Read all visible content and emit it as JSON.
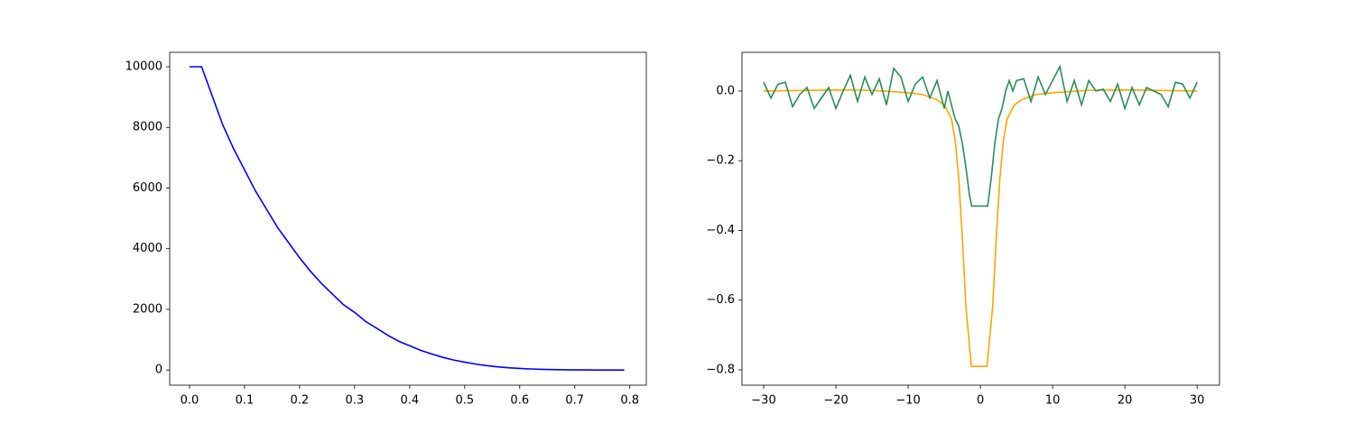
{
  "chart_data": [
    {
      "type": "line",
      "xlim": [
        -0.036,
        0.83
      ],
      "ylim": [
        -500,
        10476
      ],
      "xticks": [
        {
          "value": 0,
          "label": "0.0"
        },
        0.1,
        0.2,
        0.3,
        0.4,
        0.5,
        0.6,
        0.7,
        0.8
      ],
      "yticks": [
        0,
        2000,
        4000,
        6000,
        8000,
        10000
      ],
      "series": [
        {
          "color": "#0000ff",
          "x": [
            0,
            0.02,
            0.022,
            0.04,
            0.06,
            0.08,
            0.1,
            0.12,
            0.14,
            0.16,
            0.18,
            0.2,
            0.22,
            0.24,
            0.26,
            0.28,
            0.3,
            0.32,
            0.34,
            0.36,
            0.38,
            0.4,
            0.42,
            0.44,
            0.46,
            0.48,
            0.5,
            0.52,
            0.54,
            0.56,
            0.58,
            0.6,
            0.62,
            0.64,
            0.66,
            0.68,
            0.7,
            0.72,
            0.74,
            0.76,
            0.79
          ],
          "values": [
            10000,
            10000,
            10000,
            9100,
            8100,
            7300,
            6600,
            5900,
            5300,
            4700,
            4200,
            3700,
            3250,
            2850,
            2500,
            2150,
            1900,
            1600,
            1380,
            1150,
            950,
            800,
            650,
            530,
            420,
            330,
            260,
            195,
            145,
            105,
            75,
            52,
            35,
            22,
            14,
            8,
            5,
            3,
            1,
            0,
            0
          ]
        }
      ]
    },
    {
      "type": "line",
      "xlim": [
        -33,
        33.1
      ],
      "ylim": [
        -0.844,
        0.111
      ],
      "xticks": [
        {
          "value": -30,
          "label": "−30"
        },
        {
          "value": -20,
          "label": "−20"
        },
        {
          "value": -10,
          "label": "−10"
        },
        0,
        10,
        20,
        30
      ],
      "yticks": [
        {
          "value": -0.8,
          "label": "−0.8"
        },
        {
          "value": -0.6,
          "label": "−0.6"
        },
        {
          "value": -0.4,
          "label": "−0.4"
        },
        {
          "value": -0.2,
          "label": "−0.2"
        },
        {
          "value": 0,
          "label": "0.0"
        }
      ],
      "series": [
        {
          "color": "#ffa500",
          "x": [
            -30,
            -20,
            -15,
            -10,
            -8,
            -6,
            -5,
            -4,
            -3.5,
            -3,
            -2.5,
            -2,
            -1.25,
            0.9,
            1.7,
            2.2,
            2.7,
            3.2,
            3.7,
            4.7,
            5.7,
            7.7,
            10,
            15,
            20,
            30
          ],
          "values": [
            0,
            0.003,
            0.002,
            -0.005,
            -0.01,
            -0.025,
            -0.04,
            -0.08,
            -0.14,
            -0.25,
            -0.42,
            -0.62,
            -0.79,
            -0.79,
            -0.62,
            -0.42,
            -0.25,
            -0.14,
            -0.08,
            -0.04,
            -0.025,
            -0.01,
            -0.005,
            0.002,
            0.003,
            0
          ]
        },
        {
          "color": "#2e8b57",
          "x": [
            -30,
            -29,
            -28,
            -27,
            -26,
            -25,
            -24,
            -23,
            -22,
            -21,
            -20,
            -19,
            -18,
            -17,
            -16,
            -15,
            -14,
            -13,
            -12,
            -11,
            -10,
            -9,
            -8,
            -7,
            -6,
            -5,
            -4.5,
            -4,
            -3.5,
            -3,
            -2.5,
            -2,
            -1.5,
            -1.2,
            -1,
            -0.5,
            0,
            0.5,
            1,
            1.2,
            1.5,
            2,
            2.5,
            3,
            3.5,
            4,
            4.5,
            5,
            6,
            7,
            8,
            9,
            10,
            11,
            12,
            13,
            14,
            15,
            16,
            17,
            18,
            19,
            20,
            21,
            22,
            23,
            24,
            25,
            26,
            27,
            28,
            29,
            30
          ],
          "values": [
            0.025,
            -0.02,
            0.02,
            0.025,
            -0.045,
            -0.01,
            0.01,
            -0.05,
            -0.02,
            0.01,
            -0.05,
            0.0,
            0.045,
            -0.03,
            0.04,
            -0.01,
            0.035,
            -0.04,
            0.065,
            0.04,
            -0.03,
            0.02,
            0.04,
            -0.02,
            0.03,
            -0.05,
            0.0,
            -0.04,
            -0.08,
            -0.1,
            -0.15,
            -0.22,
            -0.3,
            -0.33,
            -0.33,
            -0.33,
            -0.33,
            -0.33,
            -0.33,
            -0.3,
            -0.25,
            -0.15,
            -0.08,
            -0.05,
            0.0,
            0.03,
            0.0,
            0.03,
            0.035,
            -0.03,
            0.04,
            -0.01,
            0.03,
            0.07,
            -0.03,
            0.03,
            -0.04,
            0.03,
            0.0,
            0.005,
            -0.03,
            0.02,
            -0.05,
            0.01,
            -0.04,
            0.01,
            0.0,
            -0.01,
            -0.045,
            0.025,
            0.02,
            -0.02,
            0.025
          ]
        }
      ]
    }
  ]
}
